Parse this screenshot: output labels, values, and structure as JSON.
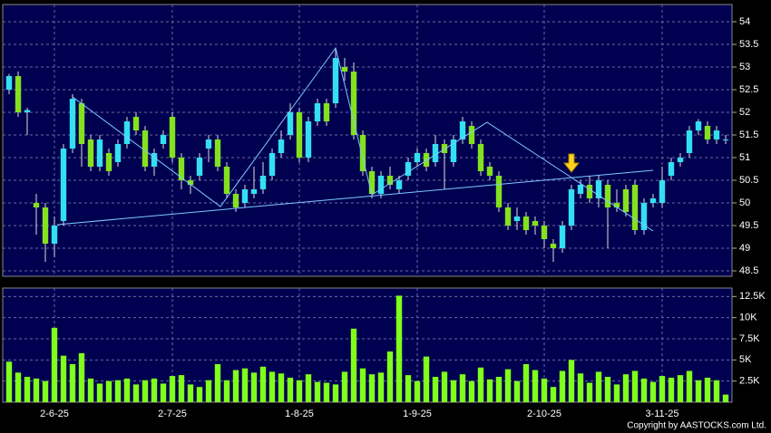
{
  "chart_data": [
    {
      "type": "candlestick",
      "categories": [
        null,
        null,
        null,
        null,
        null,
        "2-6-25",
        null,
        null,
        null,
        null,
        null,
        null,
        null,
        null,
        null,
        null,
        null,
        null,
        "2-7-25",
        null,
        null,
        null,
        null,
        null,
        null,
        null,
        null,
        null,
        null,
        null,
        null,
        null,
        "1-8-25",
        null,
        null,
        null,
        null,
        null,
        null,
        null,
        null,
        null,
        null,
        null,
        null,
        "1-9-25",
        null,
        null,
        null,
        null,
        null,
        null,
        null,
        null,
        null,
        null,
        null,
        null,
        null,
        "2-10-25",
        null,
        null,
        null,
        null,
        null,
        null,
        null,
        null,
        null,
        null,
        null,
        null,
        "3-11-25",
        null,
        null,
        null,
        null,
        null,
        null,
        null
      ],
      "open": [
        52.5,
        52.8,
        52.0,
        50.0,
        49.9,
        49.1,
        49.6,
        51.2,
        52.2,
        51.4,
        50.8,
        51.1,
        50.9,
        51.3,
        51.9,
        51.6,
        50.8,
        51.3,
        51.9,
        51.0,
        50.5,
        50.6,
        51.2,
        51.4,
        50.8,
        50.2,
        50.0,
        50.2,
        50.3,
        50.6,
        51.1,
        51.5,
        52.0,
        51.0,
        51.8,
        52.2,
        52.2,
        53.0,
        52.9,
        51.5,
        50.7,
        50.2,
        50.6,
        50.3,
        50.6,
        50.9,
        51.1,
        50.9,
        51.3,
        50.9,
        51.4,
        51.7,
        51.3,
        50.8,
        50.6,
        49.9,
        49.6,
        49.7,
        49.6,
        49.5,
        49.1,
        49.0,
        49.5,
        50.2,
        50.4,
        50.1,
        50.4,
        50.0,
        50.3,
        50.4,
        49.4,
        50.0,
        50.0,
        50.6,
        50.9,
        51.1,
        51.6,
        51.7,
        51.4,
        51.4
      ],
      "close": [
        52.8,
        52.0,
        52.05,
        49.9,
        49.1,
        49.5,
        51.2,
        52.3,
        51.3,
        50.8,
        51.4,
        50.7,
        51.3,
        51.8,
        51.6,
        50.8,
        51.1,
        51.5,
        51.0,
        50.5,
        50.4,
        51.0,
        51.4,
        50.8,
        50.2,
        49.9,
        50.3,
        50.3,
        50.6,
        51.1,
        51.4,
        52.0,
        51.0,
        51.8,
        52.2,
        51.8,
        53.2,
        52.9,
        51.5,
        50.7,
        50.2,
        50.6,
        50.4,
        50.5,
        50.9,
        51.1,
        50.8,
        51.3,
        51.1,
        51.4,
        51.8,
        51.3,
        50.7,
        50.6,
        49.9,
        49.5,
        49.7,
        49.4,
        49.5,
        49.2,
        49.0,
        49.5,
        50.3,
        50.4,
        50.1,
        50.5,
        49.9,
        49.9,
        49.8,
        49.4,
        50.0,
        50.1,
        50.5,
        50.9,
        51.0,
        51.6,
        51.8,
        51.4,
        51.6,
        51.4
      ],
      "high": [
        52.85,
        52.9,
        52.1,
        50.2,
        50.0,
        49.7,
        51.3,
        52.4,
        52.3,
        51.5,
        51.5,
        51.2,
        51.4,
        51.9,
        52.0,
        51.7,
        51.2,
        51.6,
        52.0,
        51.1,
        50.6,
        51.1,
        51.5,
        51.5,
        50.9,
        50.3,
        50.4,
        50.8,
        50.9,
        51.2,
        51.6,
        52.2,
        52.1,
        51.9,
        52.3,
        52.3,
        53.4,
        53.2,
        53.1,
        51.6,
        50.8,
        50.7,
        50.8,
        50.6,
        51.0,
        51.2,
        51.2,
        51.5,
        51.4,
        51.5,
        51.9,
        51.8,
        51.4,
        50.9,
        50.7,
        50.0,
        49.9,
        49.8,
        49.7,
        49.6,
        49.2,
        49.6,
        50.4,
        50.5,
        50.6,
        50.6,
        50.5,
        50.3,
        50.4,
        50.5,
        50.1,
        50.2,
        50.8,
        51.0,
        51.1,
        51.7,
        51.85,
        51.8,
        51.7,
        51.5
      ],
      "low": [
        52.4,
        51.9,
        51.5,
        49.3,
        48.7,
        48.8,
        49.5,
        51.1,
        50.8,
        50.7,
        50.7,
        50.6,
        50.8,
        51.2,
        51.5,
        50.7,
        50.6,
        51.2,
        50.9,
        50.3,
        50.2,
        50.5,
        50.9,
        50.7,
        50.1,
        49.8,
        49.9,
        50.1,
        50.2,
        50.5,
        51.0,
        51.4,
        50.9,
        50.9,
        51.7,
        51.7,
        52.1,
        52.7,
        51.4,
        50.6,
        50.1,
        50.1,
        50.3,
        50.2,
        50.5,
        50.8,
        50.7,
        50.8,
        50.3,
        50.8,
        51.3,
        51.2,
        50.6,
        50.5,
        49.8,
        49.4,
        49.4,
        49.3,
        49.3,
        49.0,
        48.7,
        48.9,
        49.4,
        50.1,
        50.0,
        49.9,
        49.0,
        49.8,
        49.7,
        49.3,
        49.3,
        49.9,
        49.9,
        50.5,
        50.8,
        51.0,
        51.5,
        51.3,
        51.3,
        51.3
      ],
      "up_color": "#33dff2",
      "down_color": "#84e11e",
      "ylim": [
        48.38,
        54.38
      ],
      "yticks": [
        48.5,
        49,
        49.5,
        50,
        50.5,
        51,
        51.5,
        52,
        52.5,
        53,
        53.5,
        54
      ],
      "grid": true
    },
    {
      "type": "bar",
      "values": [
        4800,
        3500,
        3000,
        2800,
        2500,
        8800,
        5500,
        4500,
        5800,
        2800,
        2200,
        2500,
        2600,
        2800,
        2100,
        2600,
        2800,
        2200,
        3100,
        3200,
        2100,
        1800,
        2600,
        4500,
        2600,
        3800,
        4000,
        3500,
        4200,
        3600,
        3400,
        2900,
        2600,
        3300,
        2400,
        2300,
        2100,
        3600,
        8700,
        4000,
        3300,
        3500,
        6000,
        12600,
        3200,
        2500,
        5400,
        3000,
        3600,
        2600,
        3300,
        2500,
        4100,
        2700,
        3000,
        3900,
        2500,
        4500,
        3800,
        2800,
        1800,
        3700,
        5000,
        3400,
        2300,
        3600,
        3000,
        2100,
        3300,
        3700,
        2800,
        2400,
        3100,
        2900,
        3200,
        3700,
        2600,
        2900,
        2600,
        900
      ],
      "color": "#7fff1a",
      "ylim": [
        0,
        13500
      ],
      "yticks": [
        {
          "value": 2500,
          "label": "2.5K"
        },
        {
          "value": 5000,
          "label": "5K"
        },
        {
          "value": 7500,
          "label": "7.5K"
        },
        {
          "value": 10000,
          "label": "10K"
        },
        {
          "value": 12500,
          "label": "12.5K"
        }
      ],
      "grid": true
    }
  ],
  "copyright": "Copyright by AASTOCKS.com Ltd."
}
